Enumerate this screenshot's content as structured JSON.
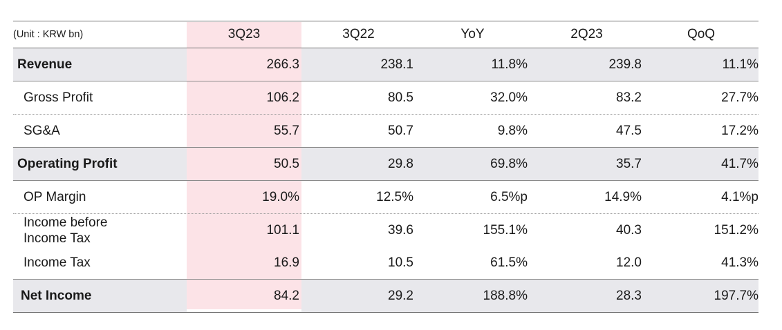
{
  "table": {
    "unit_label": "(Unit : KRW bn)",
    "columns": [
      "3Q23",
      "3Q22",
      "YoY",
      "2Q23",
      "QoQ"
    ],
    "highlight_color": "#fce3e7",
    "rows": [
      {
        "label": "Revenue",
        "values": [
          "266.3",
          "238.1",
          "11.8%",
          "239.8",
          "11.1%"
        ]
      },
      {
        "label": "Gross Profit",
        "values": [
          "106.2",
          "80.5",
          "32.0%",
          "83.2",
          "27.7%"
        ]
      },
      {
        "label": "SG&A",
        "values": [
          "55.7",
          "50.7",
          "9.8%",
          "47.5",
          "17.2%"
        ]
      },
      {
        "label": "Operating Profit",
        "values": [
          "50.5",
          "29.8",
          "69.8%",
          "35.7",
          "41.7%"
        ]
      },
      {
        "label": "OP Margin",
        "values": [
          "19.0%",
          "12.5%",
          "6.5%p",
          "14.9%",
          "4.1%p"
        ]
      },
      {
        "label_line1": "Income before",
        "label_line2": "Income Tax",
        "values": [
          "101.1",
          "39.6",
          "155.1%",
          "40.3",
          "151.2%"
        ]
      },
      {
        "label": "Income Tax",
        "values": [
          "16.9",
          "10.5",
          "61.5%",
          "12.0",
          "41.3%"
        ]
      },
      {
        "label": "Net Income",
        "values": [
          "84.2",
          "29.2",
          "188.8%",
          "28.3",
          "197.7%"
        ]
      }
    ]
  }
}
